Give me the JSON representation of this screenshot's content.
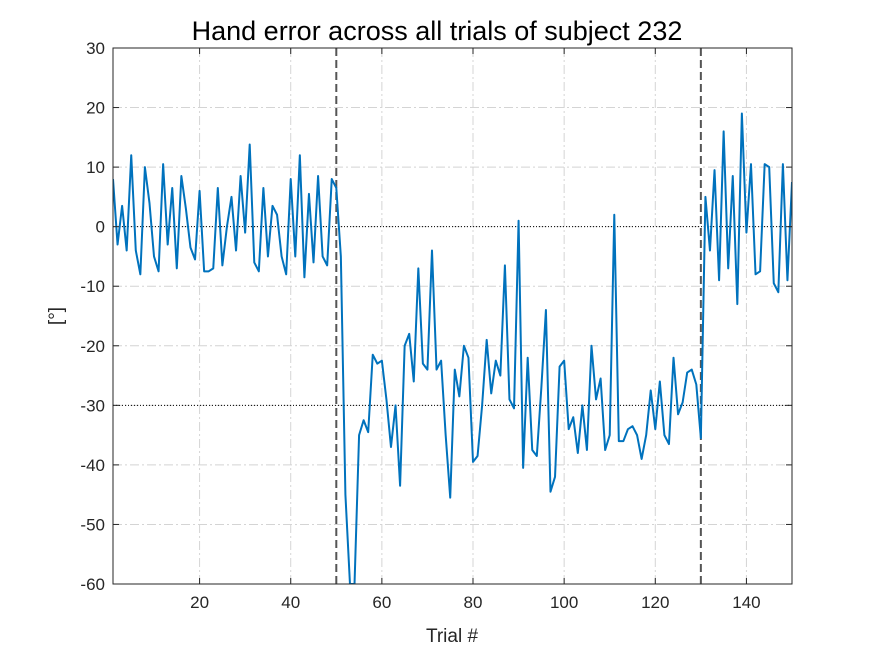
{
  "chart_data": {
    "type": "line",
    "title": "Hand error across all trials of subject 232",
    "xlabel": "Trial #",
    "ylabel": "[°]",
    "xlim": [
      1,
      150
    ],
    "ylim": [
      -60,
      30
    ],
    "xticks": [
      20,
      40,
      60,
      80,
      100,
      120,
      140
    ],
    "yticks": [
      30,
      20,
      10,
      0,
      -10,
      -20,
      -30,
      -40,
      -50,
      -60
    ],
    "grid": true,
    "line_color": "#0072BD",
    "vertical_markers": [
      50,
      130
    ],
    "horizontal_reference_lines": [
      0,
      -30
    ],
    "series": [
      {
        "x": [
          1,
          2,
          3,
          4,
          5,
          6,
          7,
          8,
          9,
          10,
          11,
          12,
          13,
          14,
          15,
          16,
          17,
          18,
          19,
          20,
          21,
          22,
          23,
          24,
          25,
          26,
          27,
          28,
          29,
          30,
          31,
          32,
          33,
          34,
          35,
          36,
          37,
          38,
          39,
          40,
          41,
          42,
          43,
          44,
          45,
          46,
          47,
          48,
          49,
          50,
          51,
          52,
          53,
          54,
          55,
          56,
          57,
          58,
          59,
          60,
          61,
          62,
          63,
          64,
          65,
          66,
          67,
          68,
          69,
          70,
          71,
          72,
          73,
          74,
          75,
          76,
          77,
          78,
          79,
          80,
          81,
          82,
          83,
          84,
          85,
          86,
          87,
          88,
          89,
          90,
          91,
          92,
          93,
          94,
          95,
          96,
          97,
          98,
          99,
          100,
          101,
          102,
          103,
          104,
          105,
          106,
          107,
          108,
          109,
          110,
          111,
          112,
          113,
          114,
          115,
          116,
          117,
          118,
          119,
          120,
          121,
          122,
          123,
          124,
          125,
          126,
          127,
          128,
          129,
          130,
          131,
          132,
          133,
          134,
          135,
          136,
          137,
          138,
          139,
          140,
          141,
          142,
          143,
          144,
          145,
          146,
          147,
          148,
          149,
          150
        ],
        "y": [
          8,
          -3,
          3.5,
          -4,
          12,
          -4,
          -8,
          10,
          4,
          -5,
          -7.5,
          10.5,
          -3,
          6.5,
          -7,
          8.5,
          3,
          -3.5,
          -5.5,
          6,
          -7.5,
          -7.5,
          -7,
          6.5,
          -6.5,
          0,
          5,
          -4,
          8.5,
          -1,
          13.8,
          -6,
          -7.5,
          6.5,
          -5,
          3.5,
          2,
          -5,
          -8,
          8,
          -5,
          12,
          -8.5,
          5.5,
          -6,
          8.5,
          -5,
          -6.5,
          8,
          6.5,
          -5,
          -45,
          -60,
          -60,
          -35,
          -32.5,
          -34.5,
          -21.5,
          -23,
          -22.5,
          -29,
          -37,
          -30,
          -43.5,
          -20,
          -18,
          -26,
          -7,
          -23,
          -24,
          -4,
          -24,
          -22.5,
          -35,
          -45.5,
          -24,
          -28.5,
          -20,
          -22,
          -39.5,
          -38.5,
          -30,
          -19,
          -28,
          -22.5,
          -25,
          -6.5,
          -29,
          -30.5,
          1,
          -40.5,
          -22,
          -37.5,
          -38.5,
          -27,
          -14,
          -44.5,
          -42,
          -23.5,
          -22.5,
          -34,
          -32,
          -38,
          -30,
          -37.5,
          -20,
          -29,
          -25.5,
          -37.5,
          -35,
          2,
          -36,
          -36,
          -34,
          -33.5,
          -35,
          -39,
          -35,
          -27.5,
          -34,
          -26,
          -35,
          -36.5,
          -22,
          -31.5,
          -29.5,
          -24.5,
          -24,
          -26.5,
          -35.5,
          5,
          -4,
          9.5,
          -9,
          16,
          -7,
          8.5,
          -13,
          19,
          -1,
          10.5,
          -8,
          -7.5,
          10.5,
          10,
          -9.5,
          -11,
          10.5,
          -9,
          7.5
        ]
      }
    ]
  }
}
